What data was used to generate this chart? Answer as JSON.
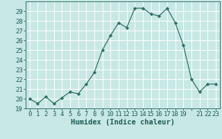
{
  "x": [
    0,
    1,
    2,
    3,
    4,
    5,
    6,
    7,
    8,
    9,
    10,
    11,
    12,
    13,
    14,
    15,
    16,
    17,
    18,
    19,
    20,
    21,
    22,
    23
  ],
  "y": [
    20,
    19.5,
    20.2,
    19.5,
    20.1,
    20.7,
    20.5,
    21.5,
    22.7,
    25.0,
    26.5,
    27.8,
    27.3,
    29.3,
    29.3,
    28.7,
    28.5,
    29.3,
    27.8,
    25.5,
    22.0,
    20.7,
    21.5,
    21.5
  ],
  "line_color": "#2d6e65",
  "marker_color": "#2d6e65",
  "bg_color": "#c8e8e5",
  "grid_color": "#ffffff",
  "text_color": "#1a5c55",
  "xlabel": "Humidex (Indice chaleur)",
  "ylim": [
    19,
    30
  ],
  "xlim": [
    -0.5,
    23.5
  ],
  "yticks": [
    19,
    20,
    21,
    22,
    23,
    24,
    25,
    26,
    27,
    28,
    29
  ],
  "xticks": [
    0,
    1,
    2,
    3,
    4,
    5,
    6,
    7,
    8,
    9,
    10,
    11,
    12,
    13,
    14,
    15,
    16,
    17,
    18,
    19,
    20,
    21,
    22,
    23
  ],
  "xtick_labels": [
    "0",
    "1",
    "2",
    "3",
    "4",
    "5",
    "6",
    "7",
    "8",
    "9",
    "10",
    "11",
    "12",
    "13",
    "14",
    "15",
    "16",
    "17",
    "18",
    "19",
    "",
    "21",
    "22",
    "23"
  ],
  "tick_fontsize": 6.5,
  "xlabel_fontsize": 7.5
}
